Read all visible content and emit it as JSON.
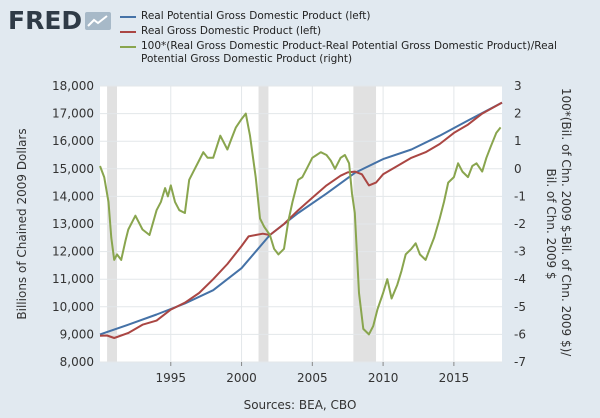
{
  "brand": {
    "logo_text": "FRED",
    "logo_icon": "line-chart-icon"
  },
  "source_label": "Sources: BEA, CBO",
  "colors": {
    "background": "#e1e9f0",
    "plot_background": "#ffffff",
    "recession": "#e1e1e1",
    "grid": "#e3e7ea"
  },
  "chart_data": {
    "type": "line",
    "x_ticks": [
      1995,
      2000,
      2005,
      2010,
      2015
    ],
    "xlim": [
      1990.0,
      2018.4
    ],
    "ylim_left": [
      8000,
      18000
    ],
    "ylim_right": [
      -7,
      3
    ],
    "yticks_left": [
      "8,000",
      "9,000",
      "10,000",
      "11,000",
      "12,000",
      "13,000",
      "14,000",
      "15,000",
      "16,000",
      "17,000",
      "18,000"
    ],
    "yticks_right": [
      "-7",
      "-6",
      "-5",
      "-4",
      "-3",
      "-2",
      "-1",
      "0",
      "1",
      "2",
      "3"
    ],
    "ylabel_left": "Billions of Chained 2009 Dollars",
    "ylabel_right": "100*(Bil. of Chn. 2009 $-Bil. of Chn. 2009 $)/Bil. of Chn. 2009 $",
    "grid": true,
    "recessions": [
      [
        1990.5,
        1991.2
      ],
      [
        2001.2,
        2001.9
      ],
      [
        2007.9,
        2009.5
      ]
    ],
    "series": [
      {
        "name": "Real Potential Gross Domestic Product (left)",
        "color": "#4572a7",
        "axis": "left",
        "x": [
          1990,
          1992,
          1994,
          1996,
          1998,
          2000,
          2002,
          2004,
          2006,
          2008,
          2010,
          2012,
          2014,
          2016,
          2018.4
        ],
        "y": [
          9000,
          9350,
          9720,
          10120,
          10600,
          11400,
          12600,
          13400,
          14100,
          14850,
          15350,
          15700,
          16200,
          16750,
          17400
        ]
      },
      {
        "name": "Real Gross Domestic Product (left)",
        "color": "#aa4643",
        "axis": "left",
        "x": [
          1990,
          1990.5,
          1991,
          1992,
          1993,
          1994,
          1995,
          1996,
          1997,
          1998,
          1999,
          2000,
          2000.5,
          2001,
          2001.5,
          2002,
          2003,
          2004,
          2005,
          2006,
          2007,
          2007.5,
          2008,
          2008.5,
          2009,
          2009.5,
          2010,
          2011,
          2012,
          2013,
          2014,
          2015,
          2016,
          2017,
          2018.4
        ],
        "y": [
          8950,
          8960,
          8870,
          9050,
          9350,
          9500,
          9900,
          10150,
          10500,
          11000,
          11550,
          12200,
          12550,
          12600,
          12650,
          12600,
          13000,
          13500,
          13950,
          14400,
          14750,
          14870,
          14900,
          14800,
          14400,
          14500,
          14800,
          15100,
          15400,
          15600,
          15900,
          16300,
          16600,
          17000,
          17400
        ]
      },
      {
        "name": "100*(Real Gross Domestic Product-Real Potential Gross Domestic Product)/Real Potential Gross Domestic Product (right)",
        "color": "#89a54e",
        "axis": "right",
        "x": [
          1990,
          1990.3,
          1990.6,
          1990.8,
          1991,
          1991.2,
          1991.5,
          1991.8,
          1992,
          1992.5,
          1993,
          1993.5,
          1994,
          1994.3,
          1994.6,
          1994.8,
          1995,
          1995.3,
          1995.6,
          1996,
          1996.3,
          1996.6,
          1997,
          1997.3,
          1997.6,
          1998,
          1998.5,
          1999,
          1999.3,
          1999.6,
          2000,
          2000.3,
          2000.6,
          2001,
          2001.3,
          2001.6,
          2002,
          2002.3,
          2002.6,
          2003,
          2003.3,
          2003.6,
          2004,
          2004.3,
          2004.6,
          2005,
          2005.3,
          2005.6,
          2006,
          2006.3,
          2006.6,
          2007,
          2007.3,
          2007.6,
          2007.8,
          2008,
          2008.3,
          2008.6,
          2009,
          2009.3,
          2009.6,
          2010,
          2010.3,
          2010.6,
          2011,
          2011.3,
          2011.6,
          2012,
          2012.3,
          2012.6,
          2013,
          2013.3,
          2013.6,
          2014,
          2014.3,
          2014.6,
          2015,
          2015.3,
          2015.6,
          2016,
          2016.3,
          2016.6,
          2017,
          2017.3,
          2017.6,
          2018,
          2018.3
        ],
        "y": [
          0.1,
          -0.3,
          -1.2,
          -2.5,
          -3.3,
          -3.1,
          -3.3,
          -2.6,
          -2.2,
          -1.7,
          -2.2,
          -2.4,
          -1.5,
          -1.2,
          -0.7,
          -1.0,
          -0.6,
          -1.2,
          -1.5,
          -1.6,
          -0.4,
          -0.1,
          0.3,
          0.6,
          0.4,
          0.4,
          1.2,
          0.7,
          1.1,
          1.5,
          1.8,
          2.0,
          1.2,
          -0.3,
          -1.8,
          -2.1,
          -2.4,
          -2.9,
          -3.1,
          -2.9,
          -1.9,
          -1.2,
          -0.4,
          -0.3,
          0.0,
          0.4,
          0.5,
          0.6,
          0.5,
          0.3,
          0.0,
          0.4,
          0.5,
          0.2,
          -0.9,
          -1.6,
          -4.5,
          -5.8,
          -6.0,
          -5.7,
          -5.1,
          -4.5,
          -4.0,
          -4.7,
          -4.2,
          -3.7,
          -3.1,
          -2.9,
          -2.7,
          -3.1,
          -3.3,
          -2.9,
          -2.5,
          -1.8,
          -1.2,
          -0.5,
          -0.3,
          0.2,
          -0.1,
          -0.3,
          0.1,
          0.2,
          -0.1,
          0.4,
          0.8,
          1.3,
          1.5
        ]
      }
    ]
  }
}
